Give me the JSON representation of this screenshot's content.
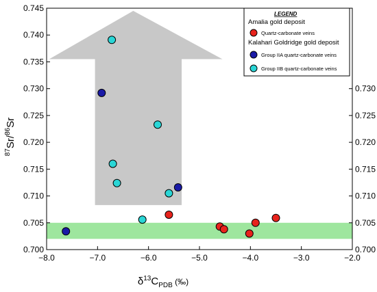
{
  "chart_data": {
    "type": "scatter",
    "xlim": [
      -8.0,
      -2.0
    ],
    "ylim": [
      0.7,
      0.745
    ],
    "x_ticks": [
      -8.0,
      -7.0,
      -6.0,
      -5.0,
      -4.0,
      -3.0,
      -2.0
    ],
    "x_tick_labels": [
      "−8.0",
      "−7.0",
      "−6.0",
      "−5.0",
      "−4.0",
      "−3.0",
      "−2.0"
    ],
    "y_ticks_left": [
      0.7,
      0.705,
      0.71,
      0.715,
      0.72,
      0.725,
      0.73,
      0.735,
      0.74,
      0.745
    ],
    "y_tick_labels_left": [
      "0.700",
      "0.705",
      "0.710",
      "0.715",
      "0.720",
      "0.725",
      "0.730",
      "0.735",
      "0.740",
      "0.745"
    ],
    "y_ticks_right": [
      0.7,
      0.705,
      0.71,
      0.715,
      0.72,
      0.725,
      0.73
    ],
    "y_tick_labels_right": [
      "0.700",
      "0.705",
      "0.710",
      "0.715",
      "0.720",
      "0.725",
      "0.730"
    ],
    "xlabel": {
      "base": "δ",
      "sup": "13",
      "main": "C",
      "sub": "PDB",
      "unit": " (‰)"
    },
    "ylabel": {
      "sup1": "87",
      "main1": "Sr/",
      "sup2": "86",
      "main2": "Sr"
    },
    "band": {
      "y_min": 0.702,
      "y_max": 0.705,
      "color": "#9ee69e"
    },
    "arrow": {
      "color": "#c8c8c8",
      "x_shaft_min": -7.05,
      "x_shaft_max": -5.35,
      "y_base": 0.7083,
      "y_head_base": 0.7355,
      "x_head_min": -7.95,
      "x_head_max": -4.55,
      "y_tip": 0.7445,
      "x_tip": -6.3
    },
    "series": [
      {
        "name": "Quartz-carbonate veins",
        "color": "#e8231c",
        "points": [
          [
            -5.6,
            0.7065
          ],
          [
            -4.6,
            0.7043
          ],
          [
            -4.52,
            0.7038
          ],
          [
            -4.02,
            0.703
          ],
          [
            -3.9,
            0.705
          ],
          [
            -3.5,
            0.7059
          ]
        ]
      },
      {
        "name": "Group IIA quartz-carbonate veins",
        "color": "#1a1aa6",
        "points": [
          [
            -7.62,
            0.7034
          ],
          [
            -6.92,
            0.7292
          ],
          [
            -5.42,
            0.7116
          ]
        ]
      },
      {
        "name": "Group IIB quartz-carbonate veins",
        "color": "#2ad6d6",
        "points": [
          [
            -6.72,
            0.7391
          ],
          [
            -6.7,
            0.716
          ],
          [
            -6.62,
            0.7124
          ],
          [
            -6.12,
            0.7056
          ],
          [
            -5.82,
            0.7233
          ],
          [
            -5.6,
            0.7105
          ]
        ]
      }
    ],
    "legend": {
      "placement": "top-right",
      "title": "LEGEND",
      "group1_title": "Amalia gold deposit",
      "group2_title": "Kalahari Goldridge gold deposit"
    }
  }
}
